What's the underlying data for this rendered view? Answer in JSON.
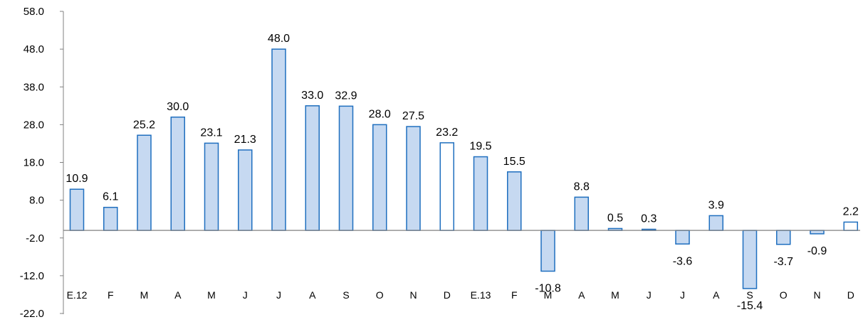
{
  "chart_data": {
    "type": "bar",
    "title": "",
    "xlabel": "",
    "ylabel": "",
    "ylim": [
      -22.0,
      58.0
    ],
    "y_ticks": [
      "58.0",
      "48.0",
      "38.0",
      "28.0",
      "18.0",
      "8.0",
      "-2.0",
      "-12.0",
      "-22.0"
    ],
    "grid": false,
    "legend": "none",
    "categories": [
      "E.12",
      "F",
      "M",
      "A",
      "M",
      "J",
      "J",
      "A",
      "S",
      "O",
      "N",
      "D",
      "E.13",
      "F",
      "M",
      "A",
      "M",
      "J",
      "J",
      "A",
      "S",
      "O",
      "N",
      "D"
    ],
    "values": [
      10.9,
      6.1,
      25.2,
      30.0,
      23.1,
      21.3,
      48.0,
      33.0,
      32.9,
      28.0,
      27.5,
      23.2,
      19.5,
      15.5,
      -10.8,
      8.8,
      0.5,
      0.3,
      -3.6,
      3.9,
      -15.4,
      -3.7,
      -0.9,
      2.2
    ],
    "value_labels": [
      "10.9",
      "6.1",
      "25.2",
      "30.0",
      "23.1",
      "21.3",
      "48.0",
      "33.0",
      "32.9",
      "28.0",
      "27.5",
      "23.2",
      "19.5",
      "15.5",
      "-10.8",
      "8.8",
      "0.5",
      "0.3",
      "-3.6",
      "3.9",
      "-15.4",
      "-3.7",
      "-0.9",
      "2.2"
    ],
    "bar_style": [
      "filled",
      "filled",
      "filled",
      "filled",
      "filled",
      "filled",
      "filled",
      "filled",
      "filled",
      "filled",
      "filled",
      "hollow",
      "filled",
      "filled",
      "filled",
      "filled",
      "filled",
      "filled",
      "filled",
      "filled",
      "filled",
      "filled",
      "filled",
      "hollow"
    ],
    "colors": {
      "bar_fill": "#c6d9f1",
      "bar_stroke": "#1f6fbf",
      "hollow_fill": "#ffffff",
      "axis": "#808080",
      "text": "#000000"
    }
  }
}
